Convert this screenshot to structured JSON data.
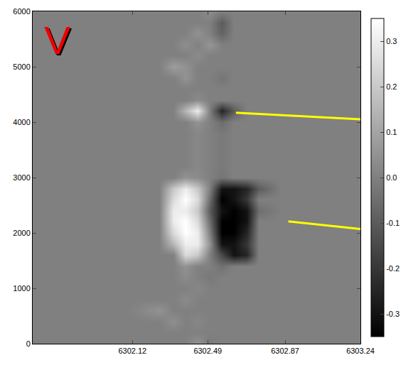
{
  "chart_data": {
    "type": "heatmap",
    "annotations": [
      "V"
    ],
    "x": [
      6301.7,
      6301.9,
      6302.1,
      6302.25,
      6302.32,
      6302.38,
      6302.44,
      6302.5,
      6302.56,
      6302.62,
      6302.68,
      6302.74,
      6302.85,
      6303.0,
      6303.15
    ],
    "y": [
      0,
      200,
      400,
      600,
      800,
      1000,
      1200,
      1400,
      1600,
      1800,
      2000,
      2200,
      2400,
      2600,
      2800,
      3000,
      3200,
      3400,
      3600,
      3800,
      4000,
      4200,
      4400,
      4600,
      4800,
      5000,
      5200,
      5400,
      5600,
      5800,
      6000
    ],
    "z": [
      [
        0,
        0,
        0,
        0,
        0,
        0,
        0.05,
        -0.02,
        0,
        0,
        0,
        0,
        0,
        0,
        0
      ],
      [
        0,
        0,
        0,
        0,
        0,
        0,
        0,
        0,
        0,
        0,
        0,
        0,
        0,
        0,
        0
      ],
      [
        0,
        0,
        0,
        0,
        0.04,
        0,
        0.02,
        0,
        0,
        0,
        0,
        0,
        0,
        0,
        0
      ],
      [
        0,
        0,
        0,
        0.05,
        0,
        0,
        0,
        0,
        0,
        0,
        0,
        0,
        0,
        0,
        0
      ],
      [
        0,
        0,
        0,
        0,
        0,
        0.03,
        0,
        0,
        0,
        0,
        0,
        0,
        0,
        0,
        0
      ],
      [
        0,
        0,
        0,
        0,
        0,
        0,
        0.02,
        0,
        0,
        0,
        0,
        0,
        0,
        0,
        0
      ],
      [
        0,
        0,
        0,
        0,
        0,
        0.03,
        0,
        -0.02,
        0,
        0,
        0,
        0,
        0,
        0,
        0
      ],
      [
        0,
        0,
        0,
        0,
        0,
        0.05,
        0,
        0,
        -0.04,
        0,
        0,
        0,
        0,
        0,
        0
      ],
      [
        0,
        0,
        0,
        0,
        0,
        0.25,
        0.2,
        0,
        -0.15,
        -0.3,
        -0.25,
        0,
        0,
        0,
        0
      ],
      [
        0,
        0,
        0,
        0,
        0.15,
        0.3,
        0.3,
        0.05,
        -0.3,
        -0.3,
        -0.2,
        0,
        0,
        0,
        0
      ],
      [
        0,
        0,
        0,
        0,
        0.25,
        0.35,
        0.3,
        0,
        -0.35,
        -0.35,
        -0.25,
        0,
        0,
        0,
        0
      ],
      [
        0,
        0,
        0,
        0,
        0.3,
        0.35,
        0.25,
        -0.05,
        -0.35,
        -0.35,
        -0.3,
        0,
        0,
        0,
        0
      ],
      [
        0,
        0,
        0,
        0,
        0.3,
        0.3,
        0.2,
        -0.1,
        -0.3,
        -0.35,
        -0.3,
        -0.05,
        0,
        0,
        0
      ],
      [
        0,
        0,
        0,
        0,
        0.25,
        0.35,
        0.25,
        -0.05,
        -0.35,
        -0.3,
        -0.2,
        0,
        0,
        0,
        0
      ],
      [
        0,
        0,
        0,
        0,
        0.2,
        0.3,
        0.2,
        0,
        -0.3,
        -0.3,
        -0.25,
        -0.1,
        0,
        0,
        0
      ],
      [
        0,
        0,
        0,
        0,
        0,
        0.05,
        0.03,
        0,
        -0.03,
        0,
        0,
        0,
        0,
        0,
        0
      ],
      [
        0,
        0,
        0,
        0,
        0,
        0,
        0.02,
        0,
        -0.02,
        0,
        0,
        0,
        0,
        0,
        0
      ],
      [
        0,
        0,
        0,
        0,
        0,
        0,
        0.02,
        0,
        -0.02,
        0,
        0,
        0,
        0,
        0,
        0
      ],
      [
        0,
        0,
        0,
        0,
        0,
        0,
        0.02,
        0,
        -0.02,
        0,
        0,
        0,
        0,
        0,
        0
      ],
      [
        0,
        0,
        0,
        0,
        0,
        0,
        0.02,
        0,
        -0.02,
        0,
        0,
        0,
        0,
        0,
        0
      ],
      [
        0,
        0,
        0,
        0,
        0,
        0,
        0.05,
        0,
        -0.05,
        0,
        0,
        0,
        0,
        0,
        0
      ],
      [
        0,
        0,
        0,
        0,
        0,
        0.15,
        0.3,
        0,
        -0.25,
        -0.1,
        0,
        0,
        0,
        0,
        0
      ],
      [
        0,
        0,
        0,
        0,
        0,
        0,
        0.03,
        0,
        0,
        0,
        0,
        0,
        0,
        0,
        0
      ],
      [
        0,
        0,
        0,
        0,
        0,
        0,
        0,
        0,
        0,
        0,
        0,
        0,
        0,
        0,
        0
      ],
      [
        0,
        0,
        0,
        0,
        0,
        0.05,
        0,
        0,
        -0.03,
        0,
        0,
        0,
        0,
        0,
        0
      ],
      [
        0,
        0,
        0,
        0,
        0.08,
        0.05,
        0,
        0,
        0,
        0,
        0,
        0,
        0,
        0,
        0
      ],
      [
        0,
        0,
        0,
        0,
        0,
        0,
        0.03,
        0,
        0,
        0,
        0,
        0,
        0,
        0,
        0
      ],
      [
        0,
        0,
        0,
        0,
        0,
        0.04,
        0,
        0.06,
        0,
        0,
        0,
        0,
        0,
        0,
        0
      ],
      [
        0,
        0,
        0,
        0,
        0,
        0,
        0.05,
        0,
        -0.08,
        0,
        0,
        0,
        0,
        0,
        0
      ],
      [
        0,
        0,
        0,
        0,
        0,
        0,
        0,
        0,
        -0.1,
        0,
        0,
        0,
        0,
        0,
        0
      ],
      [
        0,
        0,
        0,
        0,
        0,
        0,
        0,
        0.03,
        0,
        0,
        0,
        0,
        0,
        0,
        0
      ]
    ],
    "xlim": [
      6301.63,
      6303.24
    ],
    "ylim": [
      0,
      6000
    ],
    "xticks": [
      6302.12,
      6302.49,
      6302.87,
      6303.24
    ],
    "yticks": [
      0,
      1000,
      2000,
      3000,
      4000,
      5000,
      6000
    ],
    "zlim": [
      -0.35,
      0.35
    ],
    "zticks": [
      -0.3,
      -0.2,
      -0.1,
      {
        "value": 0,
        "label": "0.0"
      },
      0.1,
      0.2,
      0.3
    ]
  }
}
